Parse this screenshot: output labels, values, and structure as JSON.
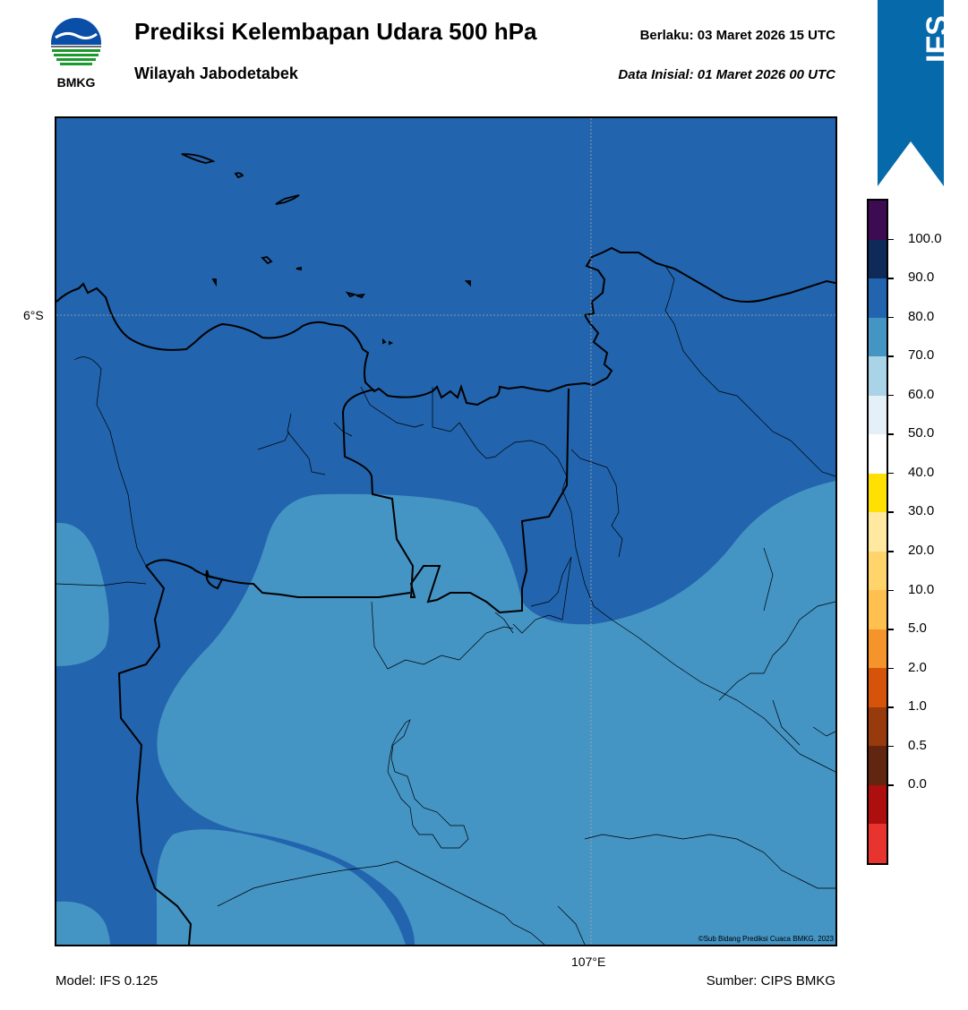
{
  "header": {
    "title": "Prediksi Kelembapan Udara 500 hPa",
    "subtitle": "Wilayah Jabodetabek",
    "valid": "Berlaku:  03 Maret 2026 15 UTC",
    "initial": "Data Inisial:  01 Maret 2026 00 UTC"
  },
  "logo": {
    "text": "BMKG",
    "icon": "bmkg-logo-icon"
  },
  "ribbon": {
    "text": "IFS",
    "color": "#0669aa",
    "icon": "chevron-up-icon"
  },
  "map": {
    "lat_label": "6°S",
    "lon_label": "107°E",
    "credit": "©Sub Bidang Prediksi Cuaca BMKG, 2023",
    "fill_dark": "#2264ad",
    "fill_light": "#4494c4"
  },
  "colorbar": {
    "colors": [
      "#3d0b52",
      "#0e2a58",
      "#2264ad",
      "#4494c4",
      "#a9d3e6",
      "#e4eff7",
      "#ffffff",
      "#ffe000",
      "#ffe9a0",
      "#ffd46a",
      "#ffc050",
      "#f4942a",
      "#d55409",
      "#973a0c",
      "#62250f",
      "#ad0e0e",
      "#e8342f"
    ],
    "labels": [
      "100.0",
      "90.0",
      "80.0",
      "70.0",
      "60.0",
      "50.0",
      "40.0",
      "30.0",
      "20.0",
      "10.0",
      "5.0",
      "2.0",
      "1.0",
      "0.5",
      "0.0"
    ]
  },
  "footer": {
    "model": "Model: IFS 0.125",
    "source": "Sumber: CIPS BMKG"
  }
}
